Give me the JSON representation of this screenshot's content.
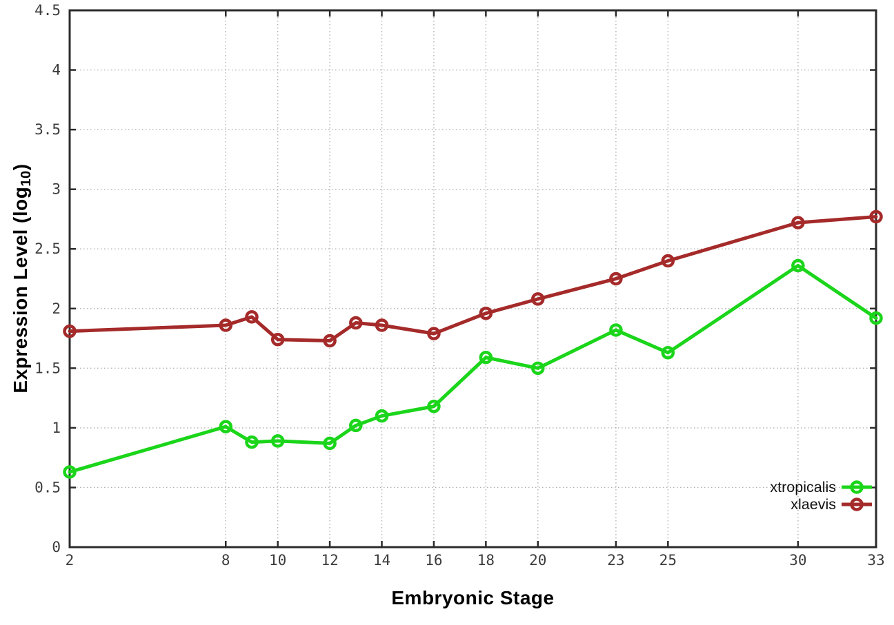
{
  "chart_data": {
    "type": "line",
    "title": "",
    "xlabel": "Embryonic Stage",
    "ylabel_main": "Expression Level (log",
    "ylabel_sub": "10",
    "ylabel_close": ")",
    "x": [
      2,
      8,
      9,
      10,
      12,
      13,
      14,
      16,
      18,
      20,
      23,
      25,
      30,
      33
    ],
    "series": [
      {
        "name": "xtropicalis",
        "color": "#1bd51b",
        "values": [
          0.63,
          1.01,
          0.88,
          0.89,
          0.87,
          1.02,
          1.1,
          1.18,
          1.59,
          1.5,
          1.82,
          1.63,
          2.36,
          1.92
        ]
      },
      {
        "name": "xlaevis",
        "color": "#a52a2a",
        "values": [
          1.81,
          1.86,
          1.93,
          1.74,
          1.73,
          1.88,
          1.86,
          1.79,
          1.96,
          2.08,
          2.25,
          2.4,
          2.72,
          2.77
        ]
      }
    ],
    "xticks": [
      2,
      8,
      10,
      12,
      14,
      16,
      18,
      20,
      23,
      25,
      30,
      33
    ],
    "yticks": [
      0,
      0.5,
      1,
      1.5,
      2,
      2.5,
      3,
      3.5,
      4,
      4.5
    ],
    "xlim": [
      2,
      33
    ],
    "ylim": [
      0,
      4.5
    ],
    "grid": true,
    "legend_position": "bottom-right",
    "marker": "open-circle",
    "colors": {
      "background": "#ffffff",
      "axis": "#2b2b2b",
      "grid": "#b0b0b0",
      "tick_label": "#3c3c3c",
      "legend_text": "#111111"
    }
  }
}
